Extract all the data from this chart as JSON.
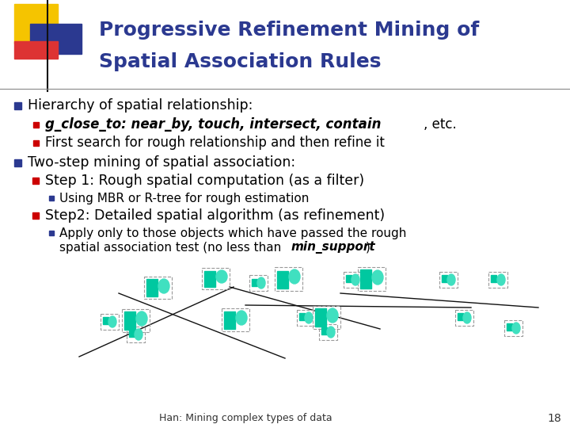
{
  "title_line1": "Progressive Refinement Mining of",
  "title_line2": "Spatial Association Rules",
  "title_color": "#2B3990",
  "background_color": "#FFFFFF",
  "footer_text": "Han: Mining complex types of data",
  "footer_page": "18",
  "bullet_color_blue": "#2B3990",
  "bullet_color_red": "#CC0000",
  "text_color": "#000000",
  "teal_dark": "#00C8A0",
  "teal_light": "#40E0C0"
}
